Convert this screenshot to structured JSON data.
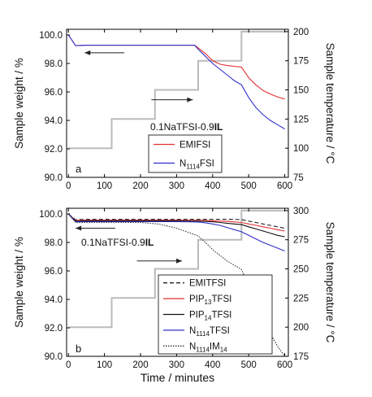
{
  "chart_data": [
    {
      "type": "line",
      "panel_label": "a",
      "annotation": "0.1NaTFSI-0.9",
      "annotation_bold": "IL",
      "x": [
        0,
        20,
        50,
        100,
        150,
        200,
        250,
        300,
        350,
        360,
        380,
        400,
        420,
        440,
        460,
        480,
        500,
        520,
        540,
        560,
        580,
        600
      ],
      "xlim": [
        -5,
        610
      ],
      "x_ticks": [
        0,
        100,
        200,
        300,
        400,
        500,
        600
      ],
      "ylabel": "Sample weight / %",
      "ylim": [
        90.0,
        100.4
      ],
      "y_ticks": [
        "90.0",
        "92.0",
        "94.0",
        "96.0",
        "98.0",
        "100.0"
      ],
      "y_tick_values": [
        90.0,
        92.0,
        94.0,
        96.0,
        98.0,
        100.0
      ],
      "y2label": "Sample temperature / °C",
      "y2lim": [
        75,
        202
      ],
      "y2_ticks": [
        "75",
        "100",
        "125",
        "150",
        "175",
        "200"
      ],
      "y2_tick_values": [
        75,
        100,
        125,
        150,
        175,
        200
      ],
      "series": [
        {
          "name_main": "EMIFSI",
          "name_sub": "",
          "name_tail": "",
          "color": "#e23030",
          "dash": "",
          "y": [
            100.0,
            99.25,
            99.28,
            99.28,
            99.28,
            99.28,
            99.28,
            99.28,
            99.28,
            99.1,
            98.7,
            98.2,
            97.95,
            97.85,
            97.8,
            97.75,
            97.0,
            96.5,
            96.1,
            95.85,
            95.65,
            95.5
          ]
        },
        {
          "name_main": "N",
          "name_sub": "1114",
          "name_tail": "FSI",
          "color": "#2f2fcc",
          "dash": "",
          "y": [
            100.0,
            99.25,
            99.28,
            99.28,
            99.28,
            99.28,
            99.28,
            99.28,
            99.28,
            99.0,
            98.5,
            98.0,
            97.6,
            97.2,
            96.8,
            96.5,
            95.6,
            94.9,
            94.4,
            94.0,
            93.7,
            93.4
          ]
        }
      ],
      "temperature": {
        "color": "#bbbbbb",
        "x": [
          0,
          120,
          120,
          240,
          240,
          360,
          360,
          480,
          480,
          600
        ],
        "y": [
          100,
          100,
          125,
          125,
          150,
          150,
          175,
          175,
          200,
          200
        ]
      },
      "arrows": [
        {
          "dir": "left",
          "x1": 155,
          "x2": 45,
          "y": 98.75
        },
        {
          "dir": "right",
          "x1": 230,
          "x2": 345,
          "y": 95.45
        }
      ]
    },
    {
      "type": "line",
      "panel_label": "b",
      "annotation": "0.1NaTFSI-0.9",
      "annotation_bold": "IL",
      "x": [
        0,
        20,
        50,
        100,
        150,
        200,
        250,
        300,
        350,
        360,
        380,
        400,
        420,
        440,
        460,
        480,
        500,
        520,
        540,
        560,
        580,
        600
      ],
      "xlim": [
        -5,
        610
      ],
      "x_ticks": [
        0,
        100,
        200,
        300,
        400,
        500,
        600
      ],
      "xlabel": "Time / minutes",
      "ylabel": "Sample weight / %",
      "ylim": [
        90.0,
        100.4
      ],
      "y_ticks": [
        "90.0",
        "92.0",
        "94.0",
        "96.0",
        "98.0",
        "100.0"
      ],
      "y_tick_values": [
        90.0,
        92.0,
        94.0,
        96.0,
        98.0,
        100.0
      ],
      "y2label": "Sample temperature / °C",
      "y2lim": [
        175,
        302
      ],
      "y2_ticks": [
        "175",
        "200",
        "225",
        "250",
        "275",
        "300"
      ],
      "y2_tick_values": [
        175,
        200,
        225,
        250,
        275,
        300
      ],
      "series": [
        {
          "name_main": "EMITFSI",
          "name_sub": "",
          "name_tail": "",
          "color": "#222222",
          "dash": "5,3",
          "y": [
            100.0,
            99.6,
            99.62,
            99.62,
            99.62,
            99.62,
            99.62,
            99.62,
            99.62,
            99.62,
            99.62,
            99.62,
            99.62,
            99.62,
            99.62,
            99.6,
            99.5,
            99.4,
            99.3,
            99.2,
            99.1,
            99.0
          ]
        },
        {
          "name_main": "PIP",
          "name_sub": "13",
          "name_tail": "TFSI",
          "color": "#e23030",
          "dash": "",
          "y": [
            100.0,
            99.55,
            99.56,
            99.56,
            99.56,
            99.56,
            99.56,
            99.56,
            99.55,
            99.55,
            99.54,
            99.52,
            99.5,
            99.48,
            99.44,
            99.4,
            99.3,
            99.2,
            99.1,
            99.0,
            98.9,
            98.8
          ]
        },
        {
          "name_main": "PIP",
          "name_sub": "14",
          "name_tail": "TFSI",
          "color": "#111111",
          "dash": "",
          "y": [
            100.0,
            99.5,
            99.52,
            99.52,
            99.52,
            99.52,
            99.52,
            99.52,
            99.5,
            99.5,
            99.48,
            99.45,
            99.4,
            99.35,
            99.3,
            99.25,
            99.1,
            98.95,
            98.8,
            98.65,
            98.5,
            98.4
          ]
        },
        {
          "name_main": "N",
          "name_sub": "1114",
          "name_tail": "TFSI",
          "color": "#2f2fcc",
          "dash": "",
          "y": [
            100.0,
            99.45,
            99.46,
            99.46,
            99.46,
            99.46,
            99.46,
            99.46,
            99.44,
            99.43,
            99.38,
            99.3,
            99.2,
            99.05,
            98.9,
            98.75,
            98.5,
            98.25,
            98.0,
            97.8,
            97.6,
            97.4
          ]
        },
        {
          "name_main": "N",
          "name_sub": "1114",
          "name_tail": "IM",
          "name_sub2": "14",
          "color": "#333333",
          "dash": "1.5,1.5",
          "y": [
            100.0,
            99.4,
            99.4,
            99.4,
            99.4,
            99.4,
            99.3,
            99.0,
            98.55,
            98.45,
            98.0,
            97.5,
            97.1,
            96.7,
            96.4,
            96.1,
            95.0,
            93.8,
            92.7,
            91.6,
            90.7,
            90.0
          ]
        }
      ],
      "temperature": {
        "color": "#bbbbbb",
        "x": [
          0,
          120,
          120,
          240,
          240,
          360,
          360,
          480,
          480,
          600
        ],
        "y": [
          200,
          200,
          225,
          225,
          250,
          250,
          275,
          275,
          300,
          300
        ]
      },
      "arrows": [
        {
          "dir": "left",
          "x1": 130,
          "x2": 20,
          "y": 99.0
        },
        {
          "dir": "right",
          "x1": 190,
          "x2": 315,
          "y": 96.7
        }
      ]
    }
  ]
}
